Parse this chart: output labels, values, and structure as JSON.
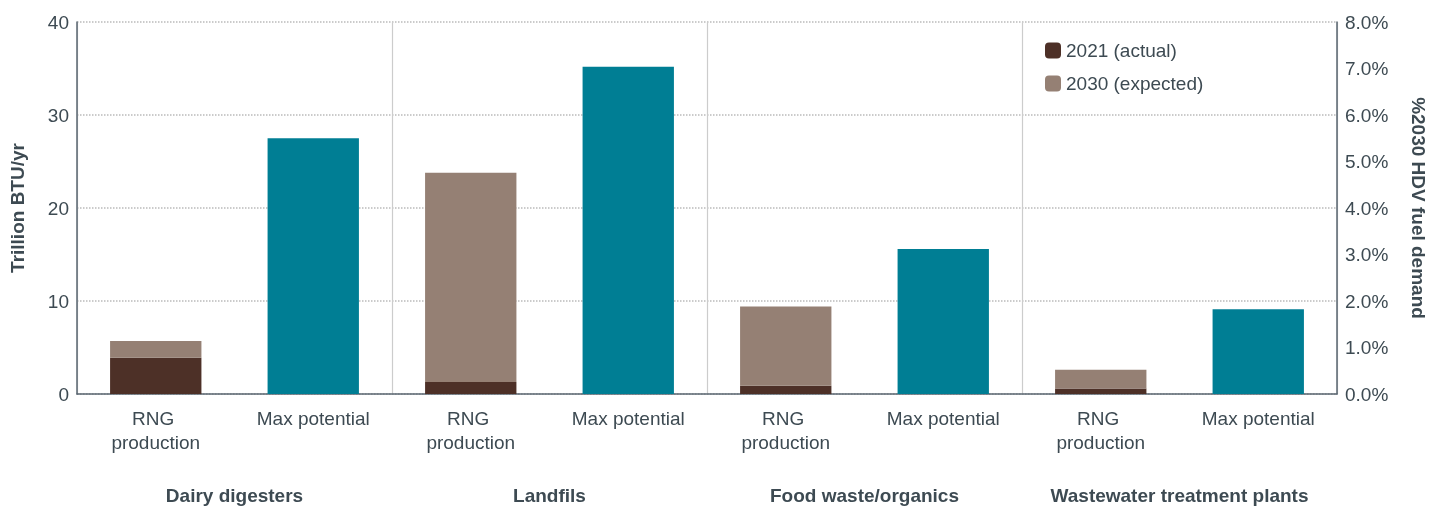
{
  "chart_data": {
    "type": "bar",
    "stacked": true,
    "categories": [
      "RNG production",
      "Max potential",
      "RNG production",
      "Max potential",
      "RNG production",
      "Max potential",
      "RNG production",
      "Max potential"
    ],
    "series": [
      {
        "name": "2021 (actual)",
        "color": "#4d3027",
        "values": [
          3.9,
          null,
          1.3,
          null,
          0.9,
          null,
          0.6,
          null
        ]
      },
      {
        "name": "2030 (expected)",
        "color": "#958074",
        "values": [
          1.8,
          null,
          22.5,
          null,
          8.5,
          null,
          2.0,
          null
        ]
      },
      {
        "color": "#007e94",
        "values": [
          null,
          27.5,
          null,
          35.2,
          null,
          15.6,
          null,
          9.1
        ]
      }
    ],
    "ylabel": "Trillion BTU/yr",
    "y2label": "%2030 HDV fuel demand",
    "ylim": [
      0,
      40
    ],
    "yticks": [
      0,
      10,
      20,
      30,
      40
    ],
    "y2lim": [
      0,
      8
    ],
    "y2ticks": [
      {
        "value": 0,
        "label": "0.0%"
      },
      {
        "value": 1,
        "label": "1.0%"
      },
      {
        "value": 2,
        "label": "2.0%"
      },
      {
        "value": 3,
        "label": "3.0%"
      },
      {
        "value": 4,
        "label": "4.0%"
      },
      {
        "value": 5,
        "label": "5.0%"
      },
      {
        "value": 6,
        "label": "6.0%"
      },
      {
        "value": 7,
        "label": "7.0%"
      },
      {
        "value": 8,
        "label": "8.0%"
      }
    ],
    "annotations": [
      "Dairy digesters",
      "Landfils",
      "Food waste/organics",
      "Wastewater treatment plants"
    ],
    "grid": "y",
    "legend": "top right"
  }
}
